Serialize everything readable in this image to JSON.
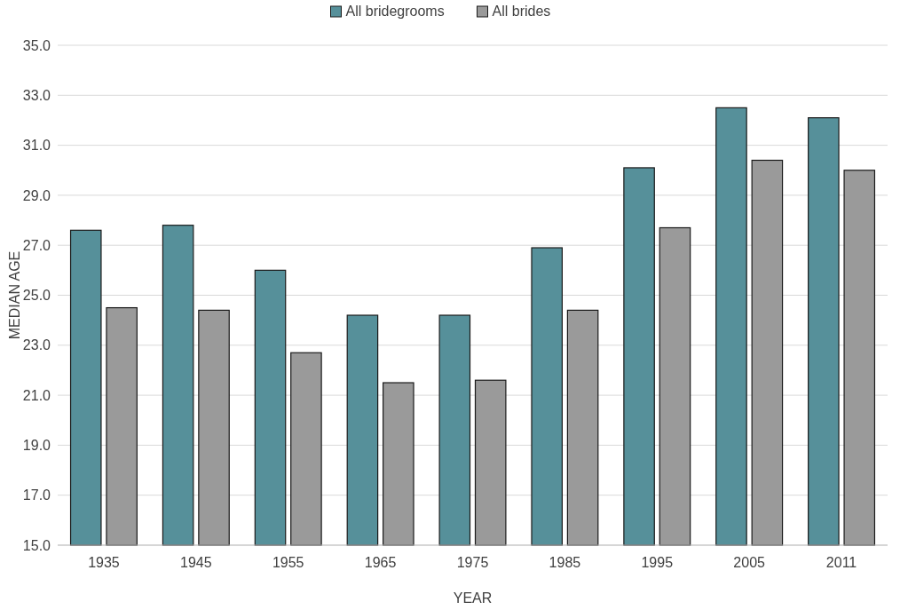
{
  "chart_data": {
    "type": "bar",
    "xlabel": "YEAR",
    "ylabel": "MEDIAN AGE",
    "categories": [
      "1935",
      "1945",
      "1955",
      "1965",
      "1975",
      "1985",
      "1995",
      "2005",
      "2011"
    ],
    "series": [
      {
        "name": "All bridegrooms",
        "color": "#56909a",
        "values": [
          27.6,
          27.8,
          26.0,
          24.2,
          24.2,
          26.9,
          30.1,
          32.5,
          32.1
        ]
      },
      {
        "name": "All brides",
        "color": "#9a9a9a",
        "values": [
          24.5,
          24.4,
          22.7,
          21.5,
          21.6,
          24.4,
          27.7,
          30.4,
          30.0
        ]
      }
    ],
    "ylim": [
      15,
      35
    ],
    "yticks": [
      {
        "value": 15,
        "label": "15.0"
      },
      {
        "value": 17,
        "label": "17.0"
      },
      {
        "value": 19,
        "label": "19.0"
      },
      {
        "value": 21,
        "label": "21.0"
      },
      {
        "value": 23,
        "label": "23.0"
      },
      {
        "value": 25,
        "label": "25.0"
      },
      {
        "value": 27,
        "label": "27.0"
      },
      {
        "value": 29,
        "label": "29.0"
      },
      {
        "value": 31,
        "label": "31.0"
      },
      {
        "value": 33,
        "label": "33.0"
      },
      {
        "value": 35,
        "label": "35.0"
      }
    ],
    "grid": "y",
    "legend": "top"
  }
}
